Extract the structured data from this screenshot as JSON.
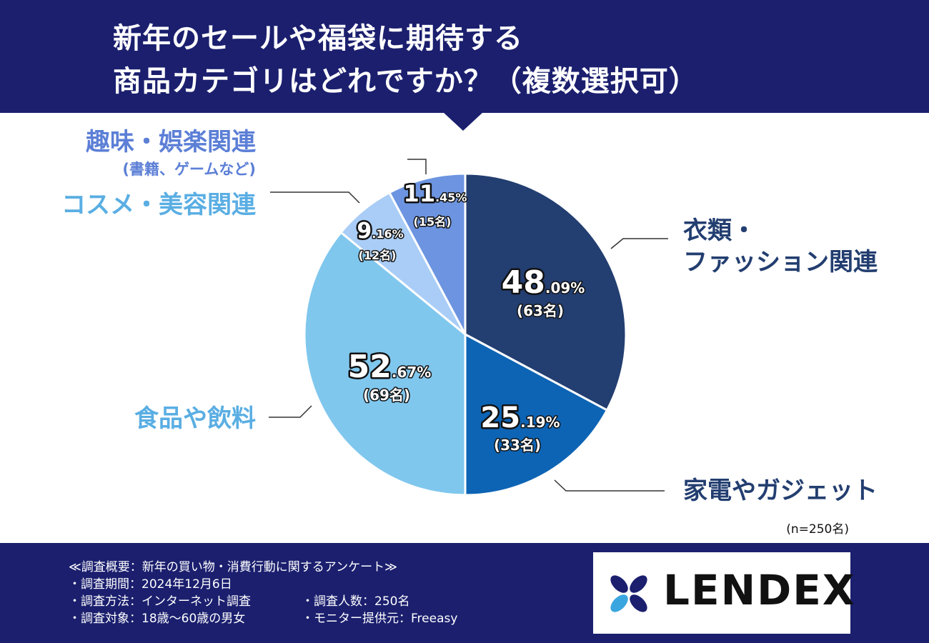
{
  "header": {
    "title_line1": "新年のセールや福袋に期待する",
    "title_line2": "商品カテゴリはどれですか？（複数選択可）"
  },
  "chart_data": {
    "type": "pie",
    "title": "新年のセールや福袋に期待する商品カテゴリはどれですか？（複数選択可）",
    "sample_note": "(n=250名)",
    "slices": [
      {
        "label_lines": [
          "衣類・",
          "ファッション関連"
        ],
        "pct_int": "48",
        "pct_dec": ".09%",
        "count_label": "(63名)",
        "count": 63,
        "pct": 48.09,
        "color": "#233e70",
        "label_color": "#233e70"
      },
      {
        "label_lines": [
          "家電やガジェット"
        ],
        "pct_int": "25",
        "pct_dec": ".19%",
        "count_label": "(33名)",
        "count": 33,
        "pct": 25.19,
        "color": "#0d64b4",
        "label_color": "#233e70"
      },
      {
        "label_lines": [
          "食品や飲料"
        ],
        "pct_int": "52",
        "pct_dec": ".67%",
        "count_label": "(69名)",
        "count": 69,
        "pct": 52.67,
        "color": "#80c7ee",
        "label_color": "#5aaee3"
      },
      {
        "label_lines": [
          "コスメ・美容関連"
        ],
        "pct_int": "9",
        "pct_dec": ".16%",
        "count_label": "(12名)",
        "count": 12,
        "pct": 9.16,
        "color": "#a9cdf6",
        "label_color": "#5aaee3"
      },
      {
        "label_lines": [
          "趣味・娯楽関連"
        ],
        "sub_label": "(書籍、ゲームなど)",
        "pct_int": "11",
        "pct_dec": ".45%",
        "count_label": "(15名)",
        "count": 15,
        "pct": 11.45,
        "color": "#6c94e0",
        "label_color": "#5c7fd6"
      }
    ]
  },
  "footer": {
    "survey_title": "≪調査概要：新年の買い物・消費行動に関するアンケート≫",
    "period": "・調査期間：2024年12月6日",
    "method": "・調査方法：インターネット調査",
    "target": "・調査対象：18歳〜60歳の男女",
    "count": "・調査人数：250名",
    "monitor": "・モニター提供元：Freeasy"
  },
  "logo": {
    "text": "LENDEX",
    "mark_colors": [
      "#1b1f6e",
      "#3aa6e0"
    ]
  }
}
